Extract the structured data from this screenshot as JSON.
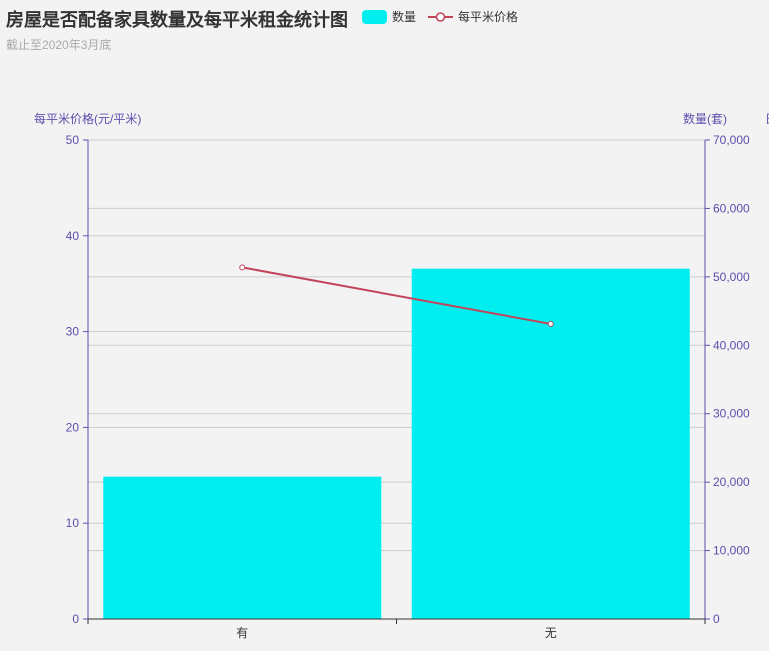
{
  "chart_data": {
    "type": "bar",
    "title": "房屋是否配备家具数量及每平米租金统计图",
    "subtitle": "截止至2020年3月底",
    "categories": [
      "有",
      "无"
    ],
    "legend": [
      "数量",
      "每平米价格"
    ],
    "y_left": {
      "name": "每平米价格(元/平米)",
      "min": 0,
      "max": 50,
      "ticks": [
        "0",
        "10",
        "20",
        "30",
        "40",
        "50"
      ]
    },
    "y_right": {
      "name": "数量(套)",
      "min": 0,
      "max": 70000,
      "ticks": [
        "0",
        "10,000",
        "20,000",
        "30,000",
        "40,000",
        "50,000",
        "60,000",
        "70,000"
      ]
    },
    "y_right2_name_fragment": "日",
    "series": [
      {
        "name": "数量",
        "type": "bar",
        "axis": "right",
        "values": [
          20800,
          51200
        ]
      },
      {
        "name": "每平米价格",
        "type": "line",
        "axis": "left",
        "values": [
          36.7,
          30.8
        ]
      }
    ],
    "colors": {
      "bar": "#00eef0",
      "line": "#c2445a",
      "axis": "#5b4fae",
      "grid": "#cccccc"
    },
    "grid": true,
    "legend_position": "top"
  }
}
